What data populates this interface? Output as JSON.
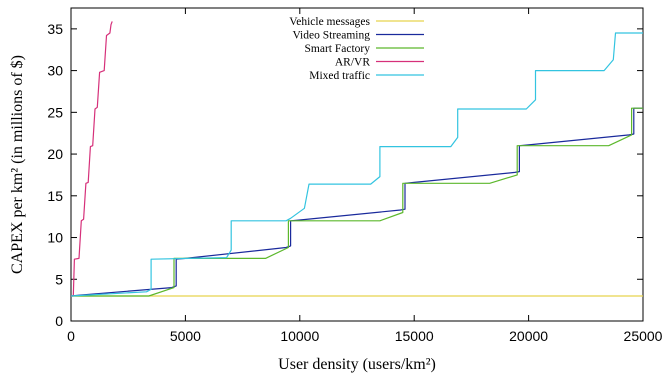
{
  "chart_data": {
    "type": "line",
    "title": "",
    "xlabel": "User density (users/km²)",
    "ylabel": "CAPEX per km² (in millions of $)",
    "xlim": [
      0,
      25000
    ],
    "ylim": [
      0,
      37.5
    ],
    "x_ticks": [
      "0",
      "5000",
      "10000",
      "15000",
      "20000",
      "25000"
    ],
    "y_ticks": [
      "0",
      "5",
      "10",
      "15",
      "20",
      "25",
      "30",
      "35"
    ],
    "grid": false,
    "legend_position": "top-center",
    "series": [
      {
        "name": "Vehicle messages",
        "color": "#e8d44d",
        "points": [
          [
            0,
            3.0
          ],
          [
            25000,
            3.0
          ]
        ]
      },
      {
        "name": "Video Streaming",
        "color": "#1a2a9c",
        "points": [
          [
            0,
            3.0
          ],
          [
            400,
            3.1
          ],
          [
            4400,
            4.0
          ],
          [
            4600,
            4.2
          ],
          [
            4600,
            7.4
          ],
          [
            5000,
            7.5
          ],
          [
            9400,
            8.8
          ],
          [
            9600,
            9.0
          ],
          [
            9600,
            12.0
          ],
          [
            10000,
            12.1
          ],
          [
            14400,
            13.3
          ],
          [
            14600,
            13.4
          ],
          [
            14600,
            16.5
          ],
          [
            15000,
            16.6
          ],
          [
            19400,
            17.8
          ],
          [
            19600,
            17.9
          ],
          [
            19600,
            21.0
          ],
          [
            20000,
            21.1
          ],
          [
            24400,
            22.3
          ],
          [
            24600,
            22.4
          ],
          [
            24600,
            25.5
          ],
          [
            25000,
            25.5
          ]
        ]
      },
      {
        "name": "Smart Factory",
        "color": "#5cb82c",
        "points": [
          [
            0,
            3.0
          ],
          [
            3400,
            3.0
          ],
          [
            4500,
            4.0
          ],
          [
            4500,
            7.5
          ],
          [
            8500,
            7.5
          ],
          [
            9500,
            8.8
          ],
          [
            9500,
            12.0
          ],
          [
            13500,
            12.0
          ],
          [
            14500,
            13.0
          ],
          [
            14500,
            16.5
          ],
          [
            18300,
            16.5
          ],
          [
            19500,
            17.5
          ],
          [
            19500,
            21.0
          ],
          [
            23500,
            21.0
          ],
          [
            24500,
            22.3
          ],
          [
            24500,
            25.5
          ],
          [
            25000,
            25.5
          ]
        ]
      },
      {
        "name": "AR/VR",
        "color": "#d6307a",
        "points": [
          [
            0,
            3.0
          ],
          [
            100,
            3.0
          ],
          [
            150,
            7.4
          ],
          [
            350,
            7.5
          ],
          [
            450,
            12.0
          ],
          [
            550,
            12.2
          ],
          [
            650,
            16.5
          ],
          [
            750,
            16.6
          ],
          [
            850,
            20.9
          ],
          [
            950,
            21.0
          ],
          [
            1050,
            25.4
          ],
          [
            1150,
            25.6
          ],
          [
            1250,
            29.8
          ],
          [
            1450,
            30.0
          ],
          [
            1550,
            34.2
          ],
          [
            1700,
            34.5
          ],
          [
            1750,
            35.5
          ],
          [
            1800,
            35.9
          ]
        ]
      },
      {
        "name": "Mixed traffic",
        "color": "#33c4e0",
        "points": [
          [
            0,
            3.0
          ],
          [
            3300,
            3.5
          ],
          [
            3500,
            3.8
          ],
          [
            3500,
            7.4
          ],
          [
            6800,
            7.6
          ],
          [
            7000,
            8.5
          ],
          [
            7000,
            12.0
          ],
          [
            9400,
            12.0
          ],
          [
            9600,
            12.3
          ],
          [
            10200,
            13.5
          ],
          [
            10400,
            16.4
          ],
          [
            13100,
            16.4
          ],
          [
            13500,
            17.3
          ],
          [
            13500,
            20.9
          ],
          [
            16600,
            20.9
          ],
          [
            16900,
            22.0
          ],
          [
            16900,
            25.4
          ],
          [
            19900,
            25.4
          ],
          [
            20300,
            26.5
          ],
          [
            20300,
            30.0
          ],
          [
            23300,
            30.0
          ],
          [
            23700,
            31.3
          ],
          [
            23800,
            34.5
          ],
          [
            25000,
            34.5
          ]
        ]
      }
    ]
  }
}
